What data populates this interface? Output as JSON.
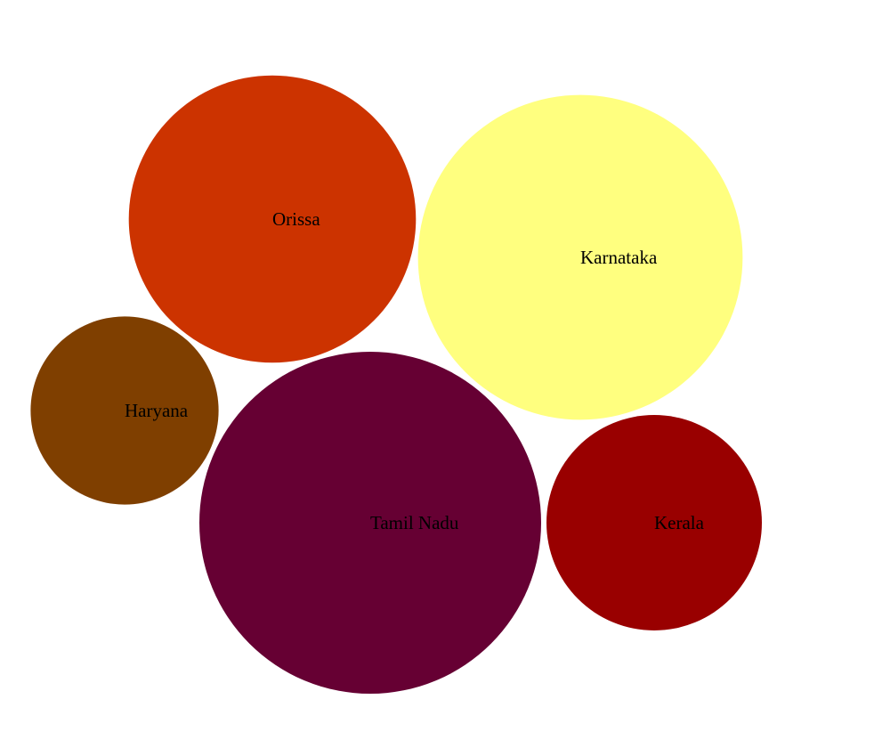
{
  "chart_data": {
    "type": "bubble",
    "title": "",
    "legend": "none",
    "grid": false,
    "series": [
      {
        "label": "Orissa",
        "color": "#cc3300"
      },
      {
        "label": "Karnataka",
        "color": "#ffff7f"
      },
      {
        "label": "Haryana",
        "color": "#7f3f00"
      },
      {
        "label": "Tamil Nadu",
        "color": "#660033"
      },
      {
        "label": "Kerala",
        "color": "#990000"
      }
    ],
    "relative_size": [
      0.84,
      0.95,
      0.55,
      1.0,
      0.63
    ]
  }
}
